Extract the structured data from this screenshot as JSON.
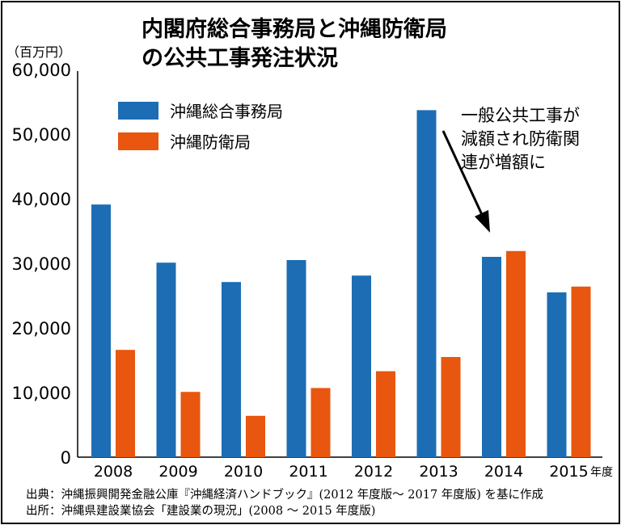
{
  "chart_data": {
    "type": "bar",
    "title": [
      "内閣府総合事務局と沖縄防衛局",
      "の公共工事発注状況"
    ],
    "ylabel": "（百万円）",
    "xlabel_unit": "年度",
    "ylim": [
      0,
      60000
    ],
    "yticks": [
      0,
      10000,
      20000,
      30000,
      40000,
      50000,
      60000
    ],
    "ytick_labels": [
      "0",
      "10,000",
      "20,000",
      "30,000",
      "40,000",
      "50,000",
      "60,000"
    ],
    "categories": [
      "2008",
      "2009",
      "2010",
      "2011",
      "2012",
      "2013",
      "2014",
      "2015"
    ],
    "series": [
      {
        "name": "沖縄総合事務局",
        "color": "#1c6db3",
        "values": [
          39100,
          30100,
          27100,
          30500,
          28100,
          53700,
          31000,
          25500
        ]
      },
      {
        "name": "沖縄防衛局",
        "color": "#e8560f",
        "values": [
          16600,
          10100,
          6400,
          10700,
          13300,
          15500,
          31900,
          26400
        ]
      }
    ],
    "legend": "top-left",
    "grid": false,
    "annotation": {
      "lines": [
        "一般公共工事が",
        "減額され防衛関",
        "連が増額に"
      ],
      "points_to": "2014"
    }
  },
  "sources": [
    "出典：沖縄振興開発金融公庫『沖縄経済ハンドブック』(2012 年度版～ 2017 年度版) を基に作成",
    "出所：沖縄県建設業協会「建設業の現況」(2008 ～ 2015 年度版)"
  ]
}
